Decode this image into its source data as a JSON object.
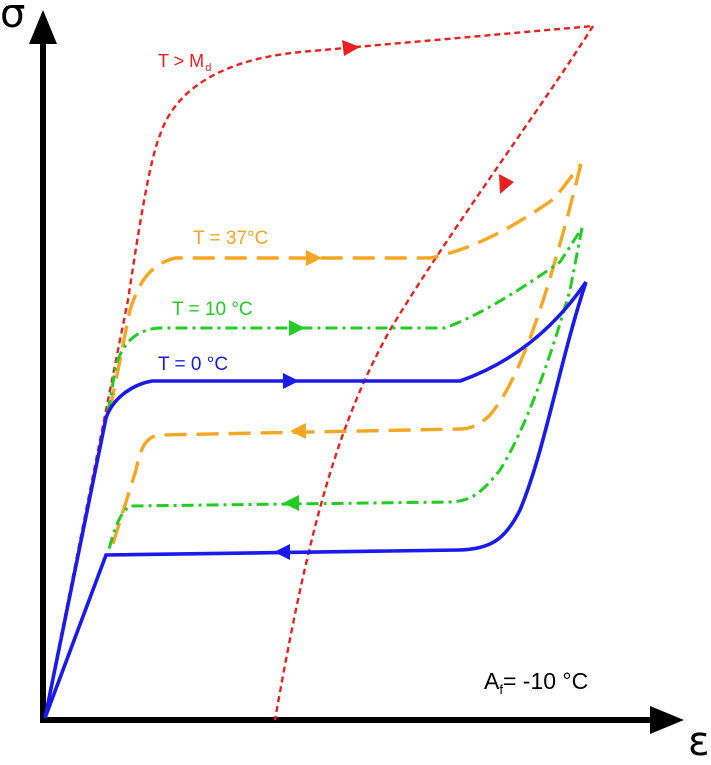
{
  "axes": {
    "y_symbol": "σ",
    "x_symbol": "ε"
  },
  "curves": {
    "red": {
      "label_main": "T > M",
      "label_sub": "d",
      "color": "#e82020",
      "style": "dashed"
    },
    "orange": {
      "label": "T = 37°C",
      "color": "#f5a623",
      "style": "long-dashed"
    },
    "green": {
      "label": "T = 10 °C",
      "color": "#22cc22",
      "style": "dash-dot"
    },
    "blue": {
      "label": "T = 0 °C",
      "color": "#1a1aee",
      "style": "solid"
    }
  },
  "annotation": {
    "af_main": "A",
    "af_sub": "f",
    "af_value": "= -10 °C"
  }
}
